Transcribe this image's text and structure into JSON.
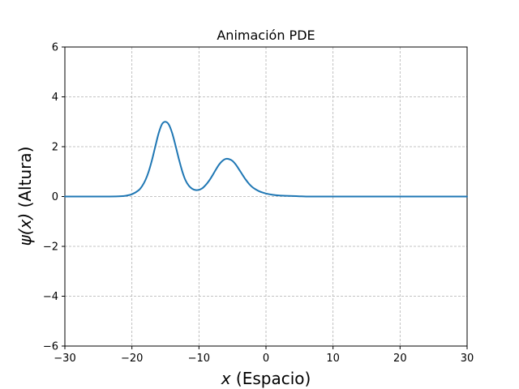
{
  "chart_data": {
    "type": "line",
    "title": "Animación PDE",
    "xlabel": {
      "math": "x",
      "text": " (Espacio)"
    },
    "ylabel": {
      "math": "ψ(x)",
      "text": " (Altura)"
    },
    "xlim": [
      -30,
      30
    ],
    "ylim": [
      -6,
      6
    ],
    "xticks": [
      -30,
      -20,
      -10,
      0,
      10,
      20,
      30
    ],
    "yticks": [
      -6,
      -4,
      -2,
      0,
      2,
      4,
      6
    ],
    "xtick_labels": [
      "−30",
      "−20",
      "−10",
      "0",
      "10",
      "20",
      "30"
    ],
    "ytick_labels": [
      "−6",
      "−4",
      "−2",
      "0",
      "2",
      "4",
      "6"
    ],
    "grid": true,
    "legend": "none",
    "colors": {
      "line": "#1f77b4"
    },
    "series": [
      {
        "x": [
          -30,
          -28,
          -26,
          -24,
          -22,
          -21,
          -20,
          -19,
          -18.5,
          -18,
          -17.5,
          -17,
          -16.5,
          -16,
          -15.5,
          -15,
          -14.5,
          -14,
          -13.5,
          -13,
          -12.5,
          -12,
          -11.5,
          -11,
          -10.5,
          -10,
          -9.5,
          -9,
          -8.5,
          -8,
          -7.5,
          -7,
          -6.5,
          -6,
          -5.5,
          -5,
          -4.5,
          -4,
          -3.5,
          -3,
          -2.5,
          -2,
          -1.5,
          -1,
          -0.5,
          0,
          1,
          2,
          3,
          4,
          5,
          6,
          8,
          10,
          12,
          15,
          20,
          25,
          30
        ],
        "y": [
          0.0,
          0.0,
          0.0,
          0.0,
          0.01,
          0.03,
          0.09,
          0.25,
          0.41,
          0.65,
          1.0,
          1.47,
          2.02,
          2.55,
          2.91,
          3.0,
          2.89,
          2.55,
          2.05,
          1.51,
          1.02,
          0.65,
          0.43,
          0.31,
          0.26,
          0.27,
          0.33,
          0.46,
          0.63,
          0.84,
          1.07,
          1.28,
          1.43,
          1.51,
          1.5,
          1.43,
          1.28,
          1.08,
          0.87,
          0.67,
          0.5,
          0.37,
          0.28,
          0.21,
          0.16,
          0.12,
          0.07,
          0.04,
          0.03,
          0.02,
          0.01,
          0.0,
          0.0,
          0.0,
          0.0,
          0.0,
          0.0,
          0.0,
          0.0
        ]
      }
    ]
  }
}
